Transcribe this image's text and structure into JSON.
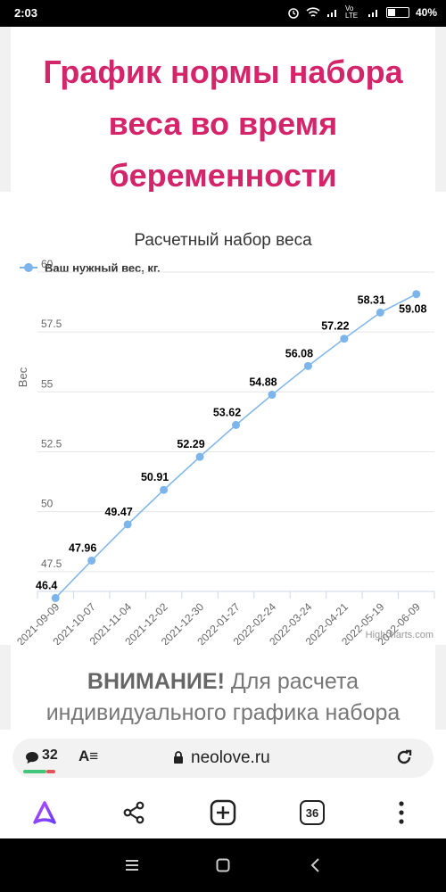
{
  "status_bar": {
    "time": "2:03",
    "network_label": "Vo LTE",
    "battery": "40%",
    "battery_level": 0.4
  },
  "page": {
    "title": "График нормы набора веса во время беременности",
    "notice_bold": "ВНИМАНИЕ!",
    "notice_text": " Для расчета индивидуального графика набора"
  },
  "chart_data": {
    "type": "line",
    "title": "Расчетный набор веса",
    "ylabel": "Вес",
    "xlabel": "",
    "legend": "Ваш нужный вес, кг.",
    "legend_position": "top-left",
    "credit": "Highcharts.com",
    "ylim": [
      45,
      60
    ],
    "yticks": [
      60,
      57.5,
      55,
      52.5,
      50,
      47.5
    ],
    "grid": true,
    "categories": [
      "2021-09-09",
      "2021-10-07",
      "2021-11-04",
      "2021-12-02",
      "2021-12-30",
      "2022-01-27",
      "2022-02-24",
      "2022-03-24",
      "2022-04-21",
      "2022-05-19",
      "2022-06-09"
    ],
    "series": [
      {
        "name": "Ваш нужный вес, кг.",
        "color": "#7cb5ec",
        "values": [
          46.4,
          47.96,
          49.47,
          50.91,
          52.29,
          53.62,
          54.88,
          56.08,
          57.22,
          58.31,
          59.08
        ]
      }
    ]
  },
  "address_bar": {
    "comments_count": "32",
    "reader_label": "A≡",
    "url": "neolove.ru"
  },
  "nav_bar": {
    "tabs_count": "36",
    "items": [
      "alice-icon",
      "share-icon",
      "new-tab-icon",
      "tabs-icon",
      "menu-icon"
    ]
  }
}
